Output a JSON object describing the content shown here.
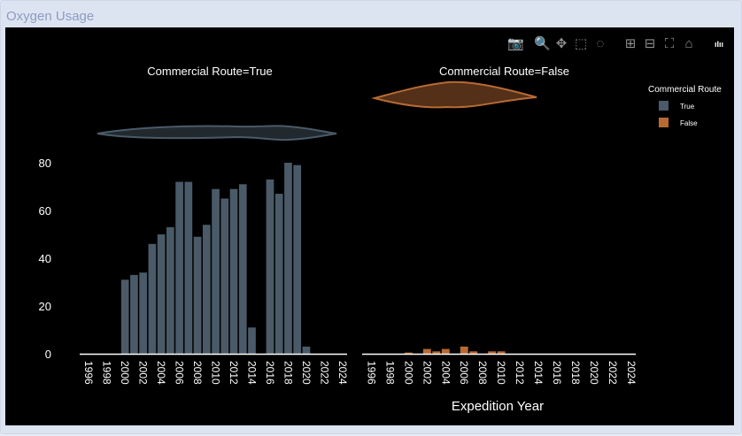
{
  "panel": {
    "title": "Oxygen Usage"
  },
  "modebar": {
    "buttons": [
      {
        "icon": "camera-icon",
        "glyph": "📷"
      },
      {
        "icon": "zoom-icon",
        "glyph": "🔍"
      },
      {
        "icon": "pan-icon",
        "glyph": "✥"
      },
      {
        "icon": "box-select-icon",
        "glyph": "⬚"
      },
      {
        "icon": "lasso-select-icon",
        "glyph": "◌"
      },
      {
        "icon": "zoom-in-icon",
        "glyph": "⊞"
      },
      {
        "icon": "zoom-out-icon",
        "glyph": "⊟"
      },
      {
        "icon": "autoscale-icon",
        "glyph": "⛶"
      },
      {
        "icon": "home-icon",
        "glyph": "⌂"
      },
      {
        "icon": "plotly-logo-icon",
        "glyph": "ıIıı"
      }
    ]
  },
  "chart_data": {
    "type": "bar",
    "xlabel": "Expedition Year",
    "ylabel": "",
    "xticks": [
      "1996",
      "1998",
      "2000",
      "2002",
      "2004",
      "2006",
      "2008",
      "2010",
      "2012",
      "2014",
      "2016",
      "2018",
      "2020",
      "2022",
      "2024"
    ],
    "xlim": [
      1995,
      2024.5
    ],
    "ylim": [
      0,
      90
    ],
    "yticks": [
      0,
      20,
      40,
      60,
      80
    ],
    "legend": {
      "title": "Commercial Route",
      "position": "top-right"
    },
    "facets": [
      {
        "title": "Commercial Route=True",
        "name": "True",
        "color": "#4a5a68",
        "years": [
          2000,
          2001,
          2002,
          2003,
          2004,
          2005,
          2006,
          2007,
          2008,
          2009,
          2010,
          2011,
          2012,
          2013,
          2014,
          2016,
          2017,
          2018,
          2019,
          2020
        ],
        "values": [
          31,
          33,
          34,
          46,
          50,
          53,
          72,
          72,
          49,
          54,
          69,
          65,
          69,
          71,
          11,
          73,
          67,
          80,
          79,
          3
        ]
      },
      {
        "title": "Commercial Route=False",
        "name": "False",
        "color": "#b86a33",
        "years": [
          2000,
          2002,
          2003,
          2004,
          2006,
          2007,
          2009,
          2010
        ],
        "values": [
          0.5,
          2,
          1,
          2,
          3,
          1,
          1,
          1
        ]
      }
    ]
  }
}
